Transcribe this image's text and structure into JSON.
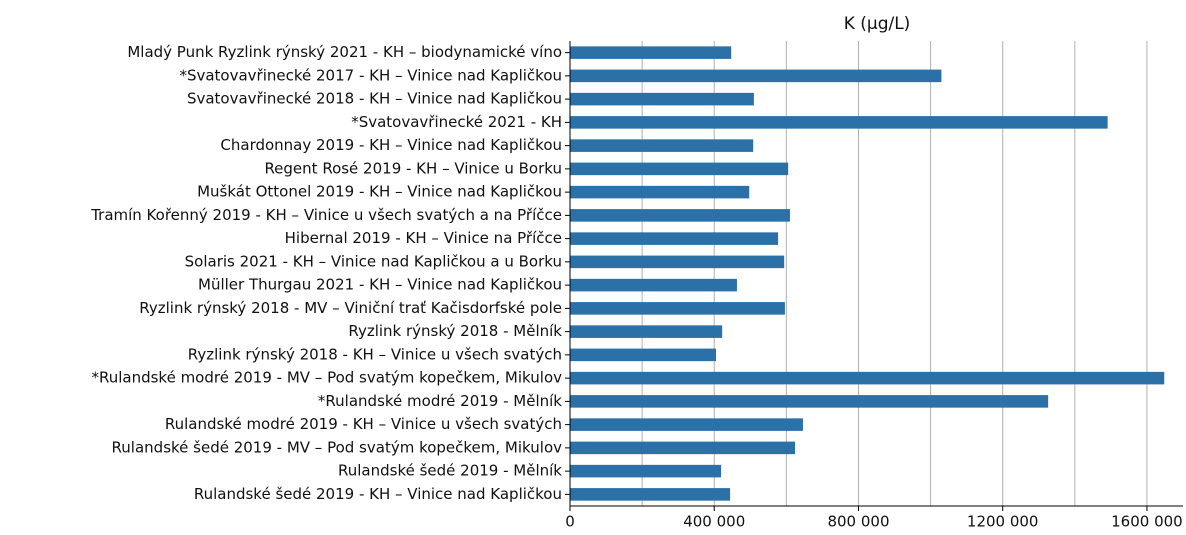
{
  "chart_data": {
    "type": "barh",
    "title": "K (μg/L)",
    "categories": [
      "Mladý Punk Ryzlink rýnský 2021 - KH – biodynamické víno",
      "*Svatovavřinecké 2017 - KH – Vinice nad Kapličkou",
      "Svatovavřinecké 2018 - KH – Vinice nad Kapličkou",
      "*Svatovavřinecké 2021 - KH",
      "Chardonnay 2019 - KH – Vinice nad Kapličkou",
      "Regent Rosé 2019 - KH – Vinice u Borku",
      "Muškát Ottonel 2019 - KH – Vinice nad Kapličkou",
      "Tramín Kořenný 2019 - KH – Vinice u všech svatých a na Příčce",
      "Hibernal 2019 - KH – Vinice na Příčce",
      "Solaris 2021 - KH – Vinice nad Kapličkou a u Borku",
      "Müller Thurgau 2021 - KH – Vinice nad Kapličkou",
      "Ryzlink rýnský 2018 - MV – Viniční trať Kačisdorfské pole",
      "Ryzlink rýnský 2018 - Mělník",
      "Ryzlink rýnský 2018 - KH – Vinice u všech svatých",
      "*Rulandské modré 2019 - MV – Pod svatým kopečkem, Mikulov",
      "*Rulandské modré 2019 - Mělník",
      "Rulandské modré 2019 - KH – Vinice u všech svatých",
      "Rulandské šedé 2019 - MV – Pod svatým kopečkem, Mikulov",
      "Rulandské šedé 2019 - Mělník",
      "Rulandské šedé 2019 - KH – Vinice nad Kapličkou"
    ],
    "values": [
      447000,
      1030000,
      510000,
      1491000,
      508000,
      605000,
      497000,
      610000,
      577000,
      594000,
      463000,
      596000,
      422000,
      405000,
      1648000,
      1326000,
      646000,
      624000,
      419000,
      444000
    ],
    "color": "#2c70a8",
    "xlim": [
      0,
      1700000
    ],
    "xticks": [
      0,
      {
        "value": 400000,
        "label": "400 000"
      },
      {
        "value": 800000,
        "label": "800 000"
      },
      {
        "value": 1200000,
        "label": "1200 000"
      },
      {
        "value": 1600000,
        "label": "1600 000"
      }
    ],
    "xminor_ticks": [
      200000,
      600000,
      1000000,
      1400000
    ],
    "grid": true
  }
}
